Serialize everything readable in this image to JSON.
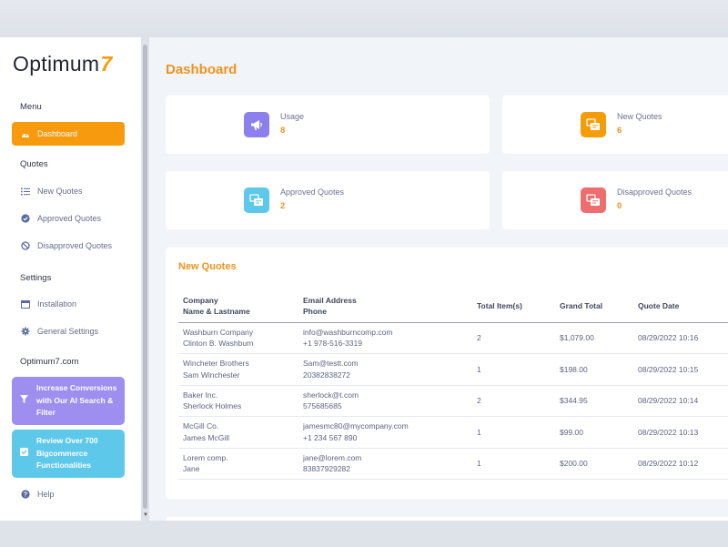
{
  "brand": {
    "name": "Optimum",
    "number": "7"
  },
  "sidebar": {
    "menu_title": "Menu",
    "dashboard": "Dashboard",
    "quotes_title": "Quotes",
    "new_quotes": "New Quotes",
    "approved_quotes": "Approved Quotes",
    "disapproved_quotes": "Disapproved Quotes",
    "settings_title": "Settings",
    "installation": "Installation",
    "general_settings": "General Settings",
    "site_title": "Optimum7.com",
    "promo_ai": "Increase Conversions with Our AI Search & Filter",
    "promo_review": "Review Over 700 Bigcommerce Functionalities",
    "help": "Help"
  },
  "page": {
    "title": "Dashboard"
  },
  "stats": [
    {
      "label": "Usage",
      "value": "8",
      "icon": "megaphone-icon",
      "color": "#8b80ec"
    },
    {
      "label": "New Quotes",
      "value": "6",
      "icon": "quotes-icon",
      "color": "#f59c0b"
    },
    {
      "label": "Approved Quotes",
      "value": "2",
      "icon": "quotes-icon",
      "color": "#5ec8ea"
    },
    {
      "label": "Disapproved Quotes",
      "value": "0",
      "icon": "quotes-icon",
      "color": "#ee6e6e"
    }
  ],
  "new_quotes": {
    "title": "New Quotes",
    "headers": {
      "company_line1": "Company",
      "company_line2": "Name & Lastname",
      "email_line1": "Email Address",
      "email_line2": "Phone",
      "items": "Total Item(s)",
      "total": "Grand Total",
      "date": "Quote Date"
    },
    "rows": [
      {
        "company": "Washburn Company",
        "name": "Clinton B. Washburn",
        "email": "info@washburncomp.com",
        "phone": "+1 978-516-3319",
        "items": "2",
        "total": "$1,079.00",
        "date": "08/29/2022 10:16"
      },
      {
        "company": "Wincheter Brothers",
        "name": "Sam Winchester",
        "email": "Sam@testt.com",
        "phone": "20382838272",
        "items": "1",
        "total": "$198.00",
        "date": "08/29/2022 10:15"
      },
      {
        "company": "Baker Inc.",
        "name": "Sherlock Holmes",
        "email": "sherlock@t.com",
        "phone": "575685685",
        "items": "2",
        "total": "$344.95",
        "date": "08/29/2022 10:14"
      },
      {
        "company": "McGill Co.",
        "name": "James McGill",
        "email": "jamesmc80@mycompany.com",
        "phone": "+1 234 567 890",
        "items": "1",
        "total": "$99.00",
        "date": "08/29/2022 10:13"
      },
      {
        "company": "Lorem comp.",
        "name": "Jane",
        "email": "jane@lorem.com",
        "phone": "83837929282",
        "items": "1",
        "total": "$200.00",
        "date": "08/29/2022 10:12"
      }
    ]
  }
}
